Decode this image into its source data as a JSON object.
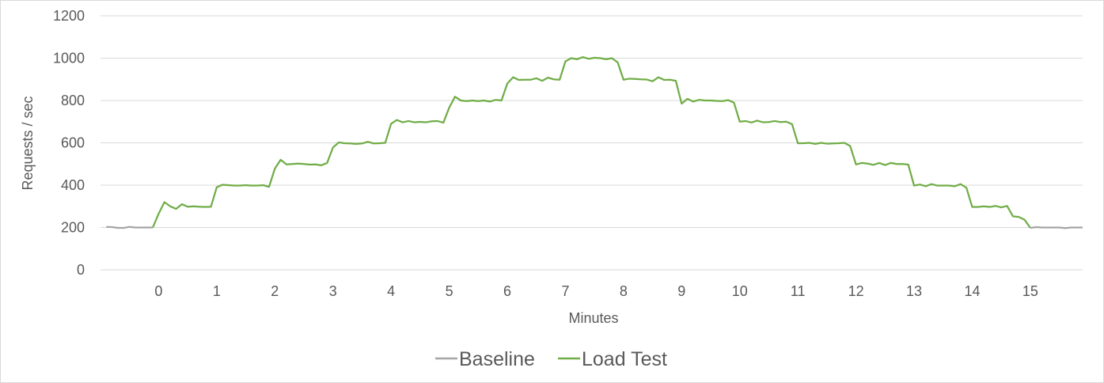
{
  "chart_data": {
    "type": "line",
    "title": "",
    "xlabel": "Minutes",
    "ylabel": "Requests / sec",
    "ylim": [
      0,
      1200
    ],
    "yticks": [
      0,
      200,
      400,
      600,
      800,
      1000,
      1200
    ],
    "xlim": [
      -1,
      15.9
    ],
    "xticks": [
      "0",
      "1",
      "2",
      "3",
      "4",
      "5",
      "6",
      "7",
      "8",
      "9",
      "10",
      "11",
      "12",
      "13",
      "14",
      "15"
    ],
    "grid": true,
    "legend_position": "bottom",
    "colors": {
      "Baseline": "#a5a5a5",
      "Load Test": "#70ad47"
    },
    "series": [
      {
        "name": "Baseline",
        "x": [
          -0.9,
          -0.8,
          -0.7,
          -0.6,
          -0.5,
          -0.4,
          -0.3,
          -0.2,
          -0.1
        ],
        "y": [
          203,
          202,
          198,
          198,
          203,
          200,
          200,
          200,
          200
        ]
      },
      {
        "name": "Load Test",
        "x": [
          -0.1,
          0.0,
          0.1,
          0.2,
          0.3,
          0.4,
          0.5,
          0.6,
          0.7,
          0.8,
          0.9,
          1.0,
          1.1,
          1.2,
          1.3,
          1.4,
          1.5,
          1.6,
          1.7,
          1.8,
          1.9,
          2.0,
          2.1,
          2.2,
          2.3,
          2.4,
          2.5,
          2.6,
          2.7,
          2.8,
          2.9,
          3.0,
          3.1,
          3.2,
          3.3,
          3.4,
          3.5,
          3.6,
          3.7,
          3.8,
          3.9,
          4.0,
          4.1,
          4.2,
          4.3,
          4.4,
          4.5,
          4.6,
          4.7,
          4.8,
          4.9,
          5.0,
          5.1,
          5.2,
          5.3,
          5.4,
          5.5,
          5.6,
          5.7,
          5.8,
          5.9,
          6.0,
          6.1,
          6.2,
          6.3,
          6.4,
          6.5,
          6.6,
          6.7,
          6.8,
          6.9,
          7.0,
          7.1,
          7.2,
          7.3,
          7.4,
          7.5,
          7.6,
          7.7,
          7.8,
          7.9,
          8.0,
          8.1,
          8.2,
          8.3,
          8.4,
          8.5,
          8.6,
          8.7,
          8.8,
          8.9,
          9.0,
          9.1,
          9.2,
          9.3,
          9.4,
          9.5,
          9.6,
          9.7,
          9.8,
          9.9,
          10.0,
          10.1,
          10.2,
          10.3,
          10.4,
          10.5,
          10.6,
          10.7,
          10.8,
          10.9,
          11.0,
          11.1,
          11.2,
          11.3,
          11.4,
          11.5,
          11.6,
          11.7,
          11.8,
          11.9,
          12.0,
          12.1,
          12.2,
          12.3,
          12.4,
          12.5,
          12.6,
          12.7,
          12.8,
          12.9,
          13.0,
          13.1,
          13.2,
          13.3,
          13.4,
          13.5,
          13.6,
          13.7,
          13.8,
          13.9,
          14.0,
          14.1,
          14.2,
          14.3,
          14.4,
          14.5,
          14.6,
          14.7,
          14.8,
          14.9,
          15.0
        ],
        "y": [
          200,
          265,
          320,
          300,
          288,
          310,
          298,
          300,
          298,
          297,
          298,
          390,
          402,
          400,
          398,
          398,
          400,
          398,
          398,
          400,
          392,
          478,
          520,
          498,
          500,
          502,
          500,
          497,
          498,
          494,
          505,
          578,
          602,
          598,
          597,
          595,
          597,
          605,
          597,
          598,
          600,
          690,
          708,
          697,
          703,
          697,
          699,
          697,
          702,
          703,
          695,
          766,
          818,
          800,
          797,
          800,
          797,
          800,
          795,
          803,
          800,
          880,
          910,
          897,
          898,
          898,
          905,
          893,
          908,
          900,
          898,
          985,
          1000,
          995,
          1005,
          997,
          1002,
          1000,
          995,
          1000,
          980,
          898,
          903,
          902,
          900,
          899,
          891,
          910,
          897,
          898,
          893,
          785,
          808,
          795,
          803,
          800,
          800,
          798,
          797,
          802,
          790,
          700,
          703,
          696,
          705,
          697,
          698,
          703,
          698,
          700,
          688,
          598,
          598,
          600,
          595,
          600,
          596,
          597,
          598,
          600,
          585,
          498,
          505,
          502,
          496,
          505,
          495,
          505,
          500,
          500,
          497,
          398,
          403,
          395,
          405,
          398,
          398,
          398,
          395,
          405,
          388,
          297,
          297,
          300,
          297,
          302,
          295,
          302,
          253,
          250,
          237,
          198
        ]
      },
      {
        "name": "Baseline",
        "x": [
          15.0,
          15.1,
          15.2,
          15.3,
          15.4,
          15.5,
          15.6,
          15.7,
          15.8,
          15.9
        ],
        "y": [
          198,
          202,
          200,
          200,
          200,
          200,
          197,
          200,
          200,
          200
        ]
      }
    ],
    "legend": [
      "Baseline",
      "Load Test"
    ]
  }
}
